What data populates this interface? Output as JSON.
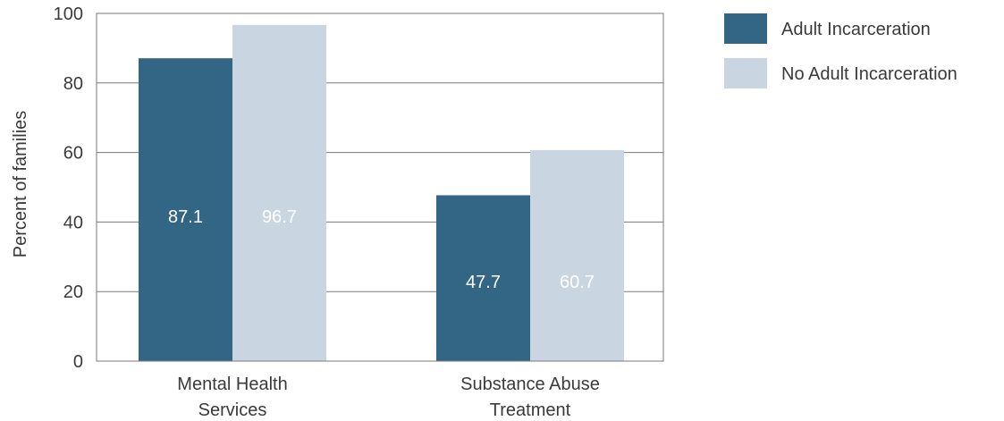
{
  "chart_data": {
    "type": "bar",
    "title": "",
    "xlabel": "",
    "ylabel": "Percent of  families",
    "ylim": [
      0,
      100
    ],
    "yticks": [
      0,
      20,
      40,
      60,
      80,
      100
    ],
    "categories": [
      [
        "Mental Health",
        "Services"
      ],
      [
        "Substance Abuse",
        "Treatment"
      ]
    ],
    "series": [
      {
        "name": "Adult Incarceration",
        "color": "#336685",
        "values": [
          87.1,
          47.7
        ],
        "labels": [
          "87.1",
          "47.7"
        ]
      },
      {
        "name": "No Adult Incarceration",
        "color": "#c9d5e1",
        "values": [
          96.7,
          60.7
        ],
        "labels": [
          "96.7",
          "60.7"
        ]
      }
    ],
    "grid": true,
    "legend_position": "top-right"
  }
}
